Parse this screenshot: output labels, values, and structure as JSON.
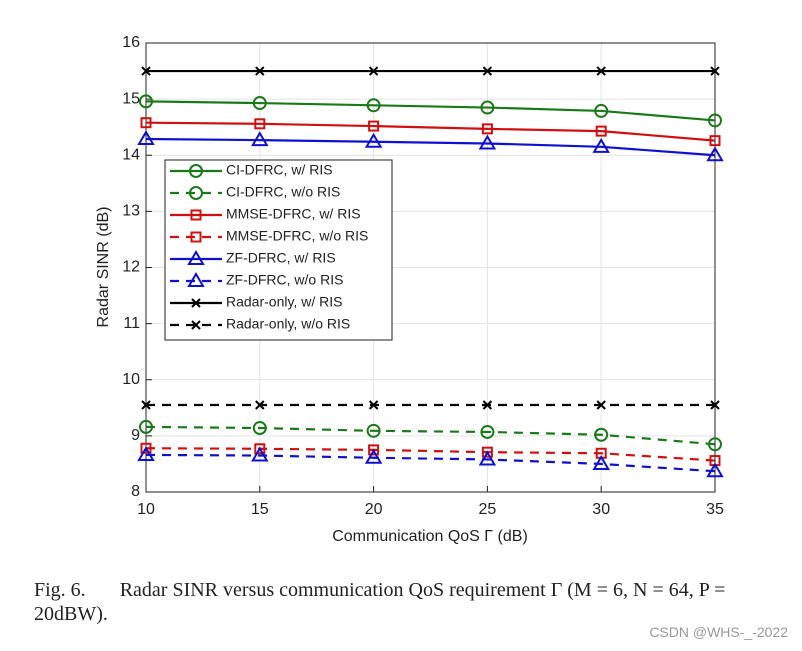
{
  "chart_data": {
    "type": "line",
    "xlabel": "Communication QoS Γ (dB)",
    "ylabel": "Radar SINR (dB)",
    "x": [
      10,
      15,
      20,
      25,
      30,
      35
    ],
    "xlim": [
      10,
      35
    ],
    "xticks": [
      10,
      15,
      20,
      25,
      30,
      35
    ],
    "ylim": [
      8,
      16
    ],
    "yticks": [
      8,
      9,
      10,
      11,
      12,
      13,
      14,
      15,
      16
    ],
    "grid": true,
    "legend": "upper left",
    "series": [
      {
        "name": "CI-DFRC, w/ RIS",
        "color": "#1a7a1a",
        "dashed": false,
        "marker": "circle",
        "values": [
          14.96,
          14.93,
          14.89,
          14.85,
          14.79,
          14.62
        ]
      },
      {
        "name": "CI-DFRC, w/o RIS",
        "color": "#1a7a1a",
        "dashed": true,
        "marker": "circle",
        "values": [
          9.16,
          9.14,
          9.09,
          9.07,
          9.02,
          8.85
        ]
      },
      {
        "name": "MMSE-DFRC, w/ RIS",
        "color": "#d01010",
        "dashed": false,
        "marker": "square",
        "values": [
          14.58,
          14.56,
          14.52,
          14.47,
          14.43,
          14.26
        ]
      },
      {
        "name": "MMSE-DFRC, w/o RIS",
        "color": "#d01010",
        "dashed": true,
        "marker": "square",
        "values": [
          8.78,
          8.77,
          8.75,
          8.71,
          8.69,
          8.56
        ]
      },
      {
        "name": "ZF-DFRC, w/ RIS",
        "color": "#1010d0",
        "dashed": false,
        "marker": "triangle",
        "values": [
          14.29,
          14.27,
          14.24,
          14.21,
          14.15,
          14.0
        ]
      },
      {
        "name": "ZF-DFRC, w/o RIS",
        "color": "#1010d0",
        "dashed": true,
        "marker": "triangle",
        "values": [
          8.66,
          8.65,
          8.61,
          8.58,
          8.5,
          8.37
        ]
      },
      {
        "name": "Radar-only, w/ RIS",
        "color": "#000000",
        "dashed": false,
        "marker": "x",
        "values": [
          15.5,
          15.5,
          15.5,
          15.5,
          15.5,
          15.5
        ]
      },
      {
        "name": "Radar-only, w/o RIS",
        "color": "#000000",
        "dashed": true,
        "marker": "x",
        "values": [
          9.55,
          9.55,
          9.55,
          9.55,
          9.55,
          9.55
        ]
      }
    ]
  },
  "caption": {
    "label": "Fig. 6.",
    "text": "Radar SINR versus communication QoS requirement Γ (M = 6, N = 64, P = 20dBW)."
  },
  "watermark": "CSDN @WHS-_-2022"
}
